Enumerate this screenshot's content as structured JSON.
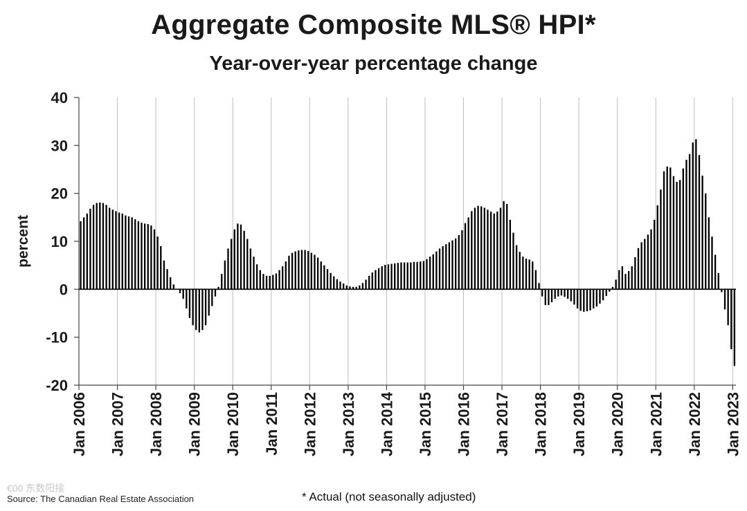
{
  "title": "Aggregate Composite MLS® HPI*",
  "subtitle": "Year-over-year percentage change",
  "source": "Source: The Canadian Real Estate Association",
  "footnote": "* Actual (not seasonally adjusted)",
  "watermark": "€00 东数阳接",
  "chart_data": {
    "type": "bar",
    "title": "Aggregate Composite MLS® HPI*",
    "subtitle": "Year-over-year percentage change",
    "ylabel": "percent",
    "ylim": [
      -20,
      40
    ],
    "yticks": [
      40,
      30,
      20,
      10,
      0,
      -10,
      -20
    ],
    "grid": "vertical at each January",
    "bar_color": "#000000",
    "x_start": "2006-01",
    "frequency": "monthly",
    "x_ticks": [
      "Jan 2006",
      "Jan 2007",
      "Jan 2008",
      "Jan 2009",
      "Jan 2010",
      "Jan 2011",
      "Jan 2012",
      "Jan 2013",
      "Jan 2014",
      "Jan 2015",
      "Jan 2016",
      "Jan 2017",
      "Jan 2018",
      "Jan 2019",
      "Jan 2020",
      "Jan 2021",
      "Jan 2022",
      "Jan 2023"
    ],
    "values": [
      14.2,
      15.0,
      15.8,
      16.8,
      17.6,
      18.0,
      18.1,
      18.0,
      17.6,
      17.0,
      16.6,
      16.3,
      16.0,
      15.8,
      15.4,
      15.2,
      15.0,
      14.6,
      14.2,
      13.9,
      13.7,
      13.6,
      13.3,
      12.5,
      11.0,
      9.0,
      6.0,
      4.2,
      2.5,
      1.0,
      0.0,
      -0.8,
      -2.0,
      -4.0,
      -6.0,
      -7.5,
      -8.5,
      -9.0,
      -8.5,
      -7.5,
      -5.5,
      -3.5,
      -1.5,
      0.5,
      3.2,
      6.0,
      8.5,
      10.5,
      12.5,
      13.7,
      13.5,
      12.2,
      10.5,
      8.5,
      6.8,
      5.2,
      4.0,
      3.2,
      2.8,
      2.8,
      3.0,
      3.3,
      4.0,
      4.8,
      5.8,
      7.0,
      7.6,
      7.9,
      8.1,
      8.2,
      8.2,
      8.0,
      7.6,
      7.2,
      6.6,
      5.8,
      5.0,
      4.2,
      3.4,
      2.7,
      2.1,
      1.6,
      1.2,
      0.8,
      0.6,
      0.5,
      0.5,
      0.8,
      1.3,
      2.0,
      2.8,
      3.5,
      4.0,
      4.4,
      4.8,
      5.1,
      5.2,
      5.3,
      5.4,
      5.5,
      5.6,
      5.6,
      5.6,
      5.6,
      5.7,
      5.7,
      5.8,
      5.9,
      6.3,
      6.8,
      7.3,
      7.9,
      8.5,
      9.0,
      9.4,
      9.8,
      10.2,
      10.6,
      11.3,
      12.3,
      13.8,
      15.0,
      16.3,
      17.0,
      17.4,
      17.3,
      17.0,
      16.6,
      16.2,
      15.8,
      16.2,
      17.0,
      18.4,
      17.8,
      14.5,
      11.8,
      9.2,
      7.8,
      6.8,
      6.4,
      6.2,
      5.8,
      4.0,
      1.3,
      -1.5,
      -3.3,
      -3.3,
      -2.7,
      -2.0,
      -1.5,
      -1.3,
      -1.6,
      -2.0,
      -2.5,
      -3.2,
      -4.0,
      -4.5,
      -4.7,
      -4.6,
      -4.4,
      -4.0,
      -3.6,
      -3.0,
      -2.3,
      -1.4,
      -0.5,
      0.5,
      2.0,
      4.0,
      4.8,
      3.2,
      3.8,
      4.8,
      6.7,
      8.6,
      9.8,
      10.5,
      11.4,
      12.5,
      14.5,
      17.5,
      20.8,
      24.6,
      25.6,
      25.4,
      23.6,
      22.4,
      22.8,
      25.2,
      27.0,
      28.2,
      30.6,
      31.3,
      28.0,
      23.7,
      20.0,
      15.0,
      11.0,
      7.2,
      3.4,
      -0.6,
      -4.2,
      -7.5,
      -12.5,
      -16.0
    ]
  }
}
